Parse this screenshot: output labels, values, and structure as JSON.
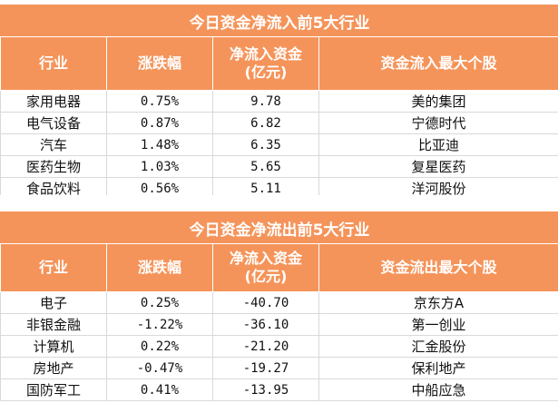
{
  "inflow": {
    "title": "今日资金净流入前5大行业",
    "headers": {
      "industry": "行业",
      "change": "涨跌幅",
      "net_line1": "净流入资金",
      "net_line2": "(亿元)",
      "top_stock": "资金流入最大个股"
    },
    "rows": [
      {
        "industry": "家用电器",
        "change": "0.75%",
        "net": "9.78",
        "stock": "美的集团"
      },
      {
        "industry": "电气设备",
        "change": "0.87%",
        "net": "6.82",
        "stock": "宁德时代"
      },
      {
        "industry": "汽车",
        "change": "1.48%",
        "net": "6.35",
        "stock": "比亚迪"
      },
      {
        "industry": "医药生物",
        "change": "1.03%",
        "net": "5.65",
        "stock": "复星医药"
      },
      {
        "industry": "食品饮料",
        "change": "0.56%",
        "net": "5.11",
        "stock": "洋河股份"
      }
    ]
  },
  "outflow": {
    "title": "今日资金净流出前5大行业",
    "headers": {
      "industry": "行业",
      "change": "涨跌幅",
      "net_line1": "净流入资金",
      "net_line2": "(亿元)",
      "top_stock": "资金流出最大个股"
    },
    "rows": [
      {
        "industry": "电子",
        "change": "0.25%",
        "net": "-40.70",
        "stock": "京东方A"
      },
      {
        "industry": "非银金融",
        "change": "-1.22%",
        "net": "-36.10",
        "stock": "第一创业"
      },
      {
        "industry": "计算机",
        "change": "0.22%",
        "net": "-21.20",
        "stock": "汇金股份"
      },
      {
        "industry": "房地产",
        "change": "-0.47%",
        "net": "-19.27",
        "stock": "保利地产"
      },
      {
        "industry": "国防军工",
        "change": "0.41%",
        "net": "-13.95",
        "stock": "中船应急"
      }
    ]
  },
  "colors": {
    "header_bg": "#f5945a",
    "header_text": "#ffffff"
  }
}
